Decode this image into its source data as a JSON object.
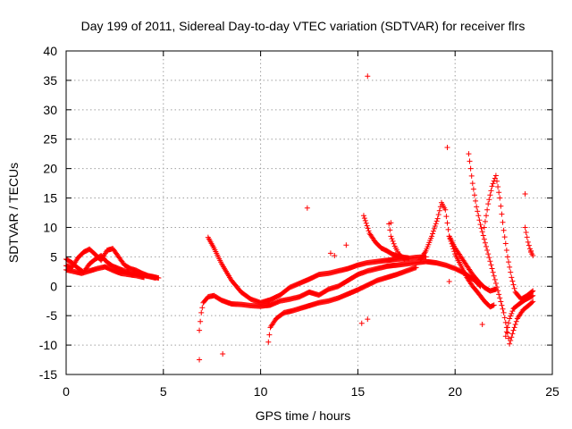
{
  "chart_data": {
    "type": "scatter",
    "title": "Day 199 of 2011, Sidereal Day-to-day VTEC variation (SDTVAR) for receiver flrs",
    "xlabel": "GPS time / hours",
    "ylabel": "SDTVAR / TECUs",
    "xlim": [
      0,
      25
    ],
    "ylim": [
      -15,
      40
    ],
    "xticks": [
      0,
      5,
      10,
      15,
      20,
      25
    ],
    "yticks": [
      -15,
      -10,
      -5,
      0,
      5,
      10,
      15,
      20,
      25,
      30,
      35,
      40
    ],
    "grid": true,
    "marker": "+",
    "color": "#ff0000",
    "series": [
      {
        "segments": [
          [
            [
              0.0,
              3.5
            ],
            [
              0.3,
              3.2
            ],
            [
              0.6,
              4.8
            ],
            [
              0.9,
              5.8
            ],
            [
              1.2,
              6.3
            ],
            [
              1.5,
              5.4
            ],
            [
              1.8,
              4.4
            ],
            [
              2.1,
              6.1
            ],
            [
              2.4,
              6.4
            ],
            [
              2.7,
              5.0
            ],
            [
              3.0,
              3.6
            ],
            [
              3.3,
              3.0
            ],
            [
              3.6,
              2.7
            ],
            [
              3.9,
              2.2
            ],
            [
              4.2,
              1.8
            ],
            [
              4.5,
              1.6
            ],
            [
              4.75,
              1.4
            ]
          ],
          [
            [
              0.0,
              4.6
            ],
            [
              0.3,
              4.0
            ],
            [
              0.6,
              3.1
            ],
            [
              0.9,
              2.4
            ],
            [
              1.2,
              3.8
            ],
            [
              1.5,
              4.6
            ],
            [
              1.8,
              5.2
            ],
            [
              2.1,
              4.1
            ],
            [
              2.4,
              3.4
            ],
            [
              2.7,
              3.0
            ],
            [
              3.0,
              2.6
            ],
            [
              3.3,
              2.3
            ],
            [
              3.6,
              2.1
            ],
            [
              3.9,
              1.9
            ],
            [
              4.2,
              1.7
            ],
            [
              4.6,
              1.4
            ]
          ],
          [
            [
              0.0,
              2.8
            ],
            [
              0.4,
              2.5
            ],
            [
              0.8,
              2.2
            ],
            [
              1.2,
              2.6
            ],
            [
              1.6,
              3.0
            ],
            [
              2.0,
              3.3
            ],
            [
              2.4,
              2.7
            ],
            [
              2.8,
              2.2
            ],
            [
              3.2,
              2.0
            ],
            [
              3.6,
              1.8
            ],
            [
              4.0,
              1.5
            ]
          ],
          [
            [
              6.85,
              -7.5
            ],
            [
              6.95,
              -4.5
            ],
            [
              7.05,
              -2.8
            ],
            [
              7.3,
              -1.8
            ],
            [
              7.6,
              -1.6
            ],
            [
              8.0,
              -2.4
            ],
            [
              8.5,
              -3.0
            ],
            [
              9.0,
              -3.1
            ],
            [
              9.5,
              -3.3
            ],
            [
              10.0,
              -3.4
            ],
            [
              10.5,
              -3.2
            ],
            [
              11.0,
              -2.5
            ],
            [
              11.5,
              -2.2
            ],
            [
              12.0,
              -1.8
            ],
            [
              12.5,
              -1.0
            ],
            [
              13.0,
              -1.5
            ],
            [
              13.5,
              -0.5
            ],
            [
              14.0,
              0.0
            ],
            [
              14.5,
              1.0
            ],
            [
              15.0,
              2.0
            ],
            [
              15.5,
              2.6
            ],
            [
              16.0,
              3.0
            ],
            [
              16.5,
              3.4
            ],
            [
              17.0,
              3.6
            ],
            [
              17.5,
              3.8
            ],
            [
              18.0,
              4.0
            ],
            [
              18.5,
              4.2
            ],
            [
              19.0,
              4.0
            ],
            [
              19.5,
              3.6
            ],
            [
              20.0,
              3.0
            ],
            [
              20.5,
              2.2
            ],
            [
              21.0,
              1.0
            ],
            [
              21.3,
              0.0
            ]
          ],
          [
            [
              7.3,
              8.3
            ],
            [
              7.6,
              6.5
            ],
            [
              8.0,
              3.8
            ],
            [
              8.5,
              1.0
            ],
            [
              9.0,
              -1.0
            ],
            [
              9.5,
              -2.2
            ],
            [
              10.0,
              -2.8
            ],
            [
              10.5,
              -2.3
            ],
            [
              11.0,
              -1.5
            ],
            [
              11.5,
              -0.2
            ],
            [
              12.0,
              0.5
            ],
            [
              12.5,
              1.2
            ],
            [
              13.0,
              2.0
            ],
            [
              13.5,
              2.2
            ],
            [
              14.0,
              2.6
            ],
            [
              14.5,
              3.0
            ],
            [
              15.0,
              3.6
            ],
            [
              15.5,
              4.0
            ],
            [
              16.0,
              4.2
            ],
            [
              16.5,
              4.4
            ],
            [
              17.0,
              4.6
            ],
            [
              17.5,
              4.7
            ],
            [
              18.0,
              4.9
            ],
            [
              18.5,
              5.0
            ]
          ],
          [
            [
              10.4,
              -9.5
            ],
            [
              10.5,
              -7.0
            ],
            [
              10.8,
              -5.5
            ],
            [
              11.2,
              -4.5
            ],
            [
              11.6,
              -4.2
            ],
            [
              12.0,
              -3.8
            ],
            [
              12.5,
              -3.3
            ],
            [
              13.0,
              -2.8
            ],
            [
              13.5,
              -2.5
            ],
            [
              14.0,
              -2.0
            ],
            [
              14.5,
              -1.3
            ],
            [
              15.0,
              -0.6
            ],
            [
              15.5,
              0.2
            ],
            [
              16.0,
              1.0
            ],
            [
              16.5,
              1.5
            ],
            [
              17.0,
              2.0
            ],
            [
              17.5,
              2.6
            ],
            [
              18.0,
              3.2
            ]
          ],
          [
            [
              15.3,
              12.0
            ],
            [
              15.6,
              9.0
            ],
            [
              15.9,
              7.5
            ],
            [
              16.2,
              6.5
            ],
            [
              16.5,
              6.0
            ],
            [
              16.8,
              5.4
            ],
            [
              17.2,
              5.0
            ],
            [
              17.6,
              4.8
            ]
          ],
          [
            [
              16.6,
              10.6
            ],
            [
              16.7,
              8.5
            ],
            [
              16.9,
              6.8
            ],
            [
              17.1,
              5.5
            ],
            [
              17.4,
              4.6
            ]
          ],
          [
            [
              18.2,
              4.5
            ],
            [
              18.5,
              6.0
            ],
            [
              18.8,
              8.5
            ],
            [
              19.1,
              11.5
            ],
            [
              19.3,
              14.2
            ],
            [
              19.5,
              13.0
            ],
            [
              19.7,
              8.5
            ],
            [
              20.0,
              5.5
            ],
            [
              20.3,
              3.5
            ],
            [
              20.6,
              1.5
            ],
            [
              20.9,
              0.0
            ],
            [
              21.2,
              -1.2
            ],
            [
              21.5,
              -2.5
            ],
            [
              21.8,
              -3.5
            ],
            [
              22.0,
              -3.2
            ]
          ],
          [
            [
              19.7,
              8.5
            ],
            [
              20.0,
              6.5
            ],
            [
              20.3,
              5.0
            ],
            [
              20.6,
              3.5
            ],
            [
              20.9,
              2.0
            ],
            [
              21.2,
              0.8
            ],
            [
              21.5,
              -0.2
            ],
            [
              21.8,
              -0.8
            ],
            [
              22.1,
              -0.5
            ]
          ],
          [
            [
              20.7,
              22.5
            ],
            [
              20.9,
              17.5
            ],
            [
              21.1,
              13.5
            ],
            [
              21.3,
              10.5
            ],
            [
              21.5,
              8.0
            ],
            [
              21.7,
              5.5
            ],
            [
              21.9,
              3.0
            ],
            [
              22.1,
              0.5
            ],
            [
              22.3,
              -2.0
            ],
            [
              22.5,
              -4.5
            ],
            [
              22.65,
              -7.0
            ],
            [
              22.8,
              -9.8
            ],
            [
              23.0,
              -7.5
            ],
            [
              23.2,
              -5.5
            ],
            [
              23.5,
              -4.0
            ],
            [
              23.8,
              -3.2
            ],
            [
              24.0,
              -2.6
            ]
          ],
          [
            [
              21.5,
              10.0
            ],
            [
              21.7,
              14.0
            ],
            [
              21.9,
              17.0
            ],
            [
              22.1,
              18.8
            ],
            [
              22.3,
              15.0
            ],
            [
              22.5,
              9.5
            ],
            [
              22.7,
              5.0
            ],
            [
              22.9,
              1.5
            ],
            [
              23.1,
              -1.0
            ],
            [
              23.4,
              -2.2
            ],
            [
              23.7,
              -1.6
            ],
            [
              24.0,
              -0.8
            ]
          ],
          [
            [
              22.6,
              -8.5
            ],
            [
              22.8,
              -5.5
            ],
            [
              23.0,
              -3.8
            ],
            [
              23.3,
              -3.0
            ],
            [
              23.6,
              -2.3
            ],
            [
              24.0,
              -1.6
            ]
          ],
          [
            [
              23.6,
              10.0
            ],
            [
              23.75,
              7.5
            ],
            [
              23.9,
              5.8
            ],
            [
              24.0,
              5.2
            ]
          ]
        ],
        "points": [
          [
            15.5,
            35.7
          ],
          [
            19.6,
            23.6
          ],
          [
            23.6,
            15.7
          ],
          [
            12.4,
            13.3
          ],
          [
            6.85,
            -12.5
          ],
          [
            8.05,
            -11.5
          ],
          [
            15.2,
            -6.3
          ],
          [
            15.5,
            -5.6
          ],
          [
            21.4,
            -6.5
          ],
          [
            19.7,
            0.8
          ],
          [
            16.7,
            10.8
          ],
          [
            14.4,
            7.0
          ],
          [
            13.8,
            5.2
          ],
          [
            13.6,
            5.6
          ],
          [
            23.9,
            6.0
          ]
        ]
      }
    ]
  }
}
